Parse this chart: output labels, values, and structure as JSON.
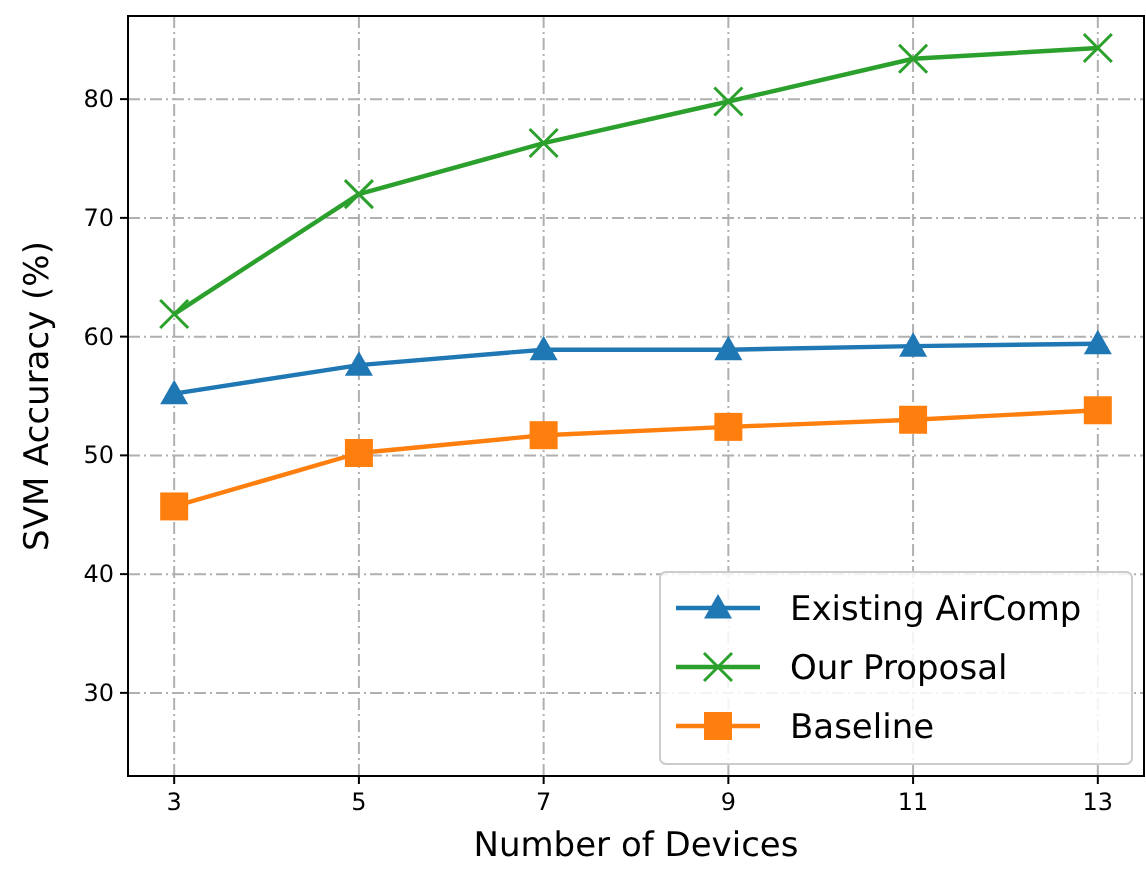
{
  "chart_data": {
    "type": "line",
    "xlabel": "Number of Devices",
    "ylabel": "SVM Accuracy (%)",
    "x": [
      3,
      5,
      7,
      9,
      11,
      13
    ],
    "xlim": [
      2.5,
      13.5
    ],
    "xticks": [
      3,
      5,
      7,
      9,
      11,
      13
    ],
    "ylim": [
      23,
      87
    ],
    "yticks": [
      30,
      40,
      50,
      60,
      70,
      80
    ],
    "grid": true,
    "legend": "bottom right",
    "line_style": "solid",
    "series": [
      {
        "name": "Existing AirComp",
        "color": "#1f77b4",
        "marker": "triangle",
        "values": [
          55.2,
          57.6,
          58.9,
          58.9,
          59.2,
          59.4
        ]
      },
      {
        "name": "Our Proposal",
        "color": "#2ca02c",
        "marker": "cross",
        "values": [
          61.9,
          72.0,
          76.3,
          79.8,
          83.4,
          84.3
        ]
      },
      {
        "name": "Baseline",
        "color": "#ff7f0e",
        "marker": "square",
        "values": [
          45.7,
          50.2,
          51.7,
          52.4,
          53.0,
          53.8
        ]
      }
    ]
  }
}
